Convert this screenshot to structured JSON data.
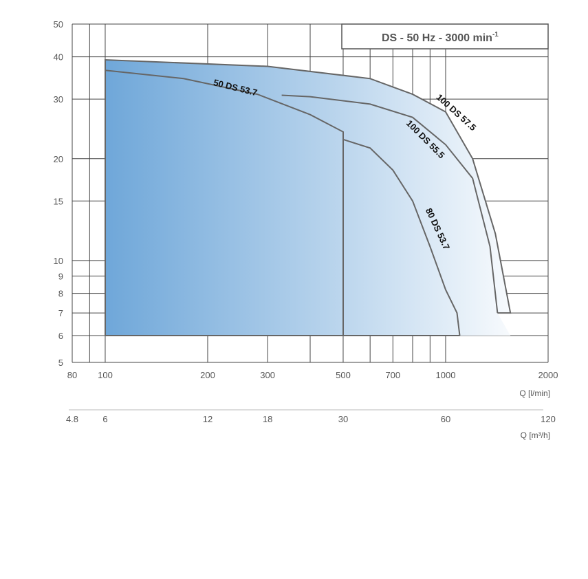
{
  "chart_data": {
    "type": "line",
    "title": "DS - 50 Hz - 3000 min-1",
    "title_main": "DS - 50 Hz - 3000 min",
    "title_sup": "-1",
    "xscale": "log",
    "yscale": "log",
    "xlim": [
      80,
      2000
    ],
    "ylim": [
      5,
      50
    ],
    "grid": true,
    "x_ticks": [
      80,
      90,
      100,
      200,
      300,
      400,
      500,
      600,
      700,
      800,
      900,
      1000,
      2000
    ],
    "x_tick_labels": [
      {
        "value": 80,
        "label": "80"
      },
      {
        "value": 100,
        "label": "100"
      },
      {
        "value": 200,
        "label": "200"
      },
      {
        "value": 300,
        "label": "300"
      },
      {
        "value": 500,
        "label": "500"
      },
      {
        "value": 700,
        "label": "700"
      },
      {
        "value": 1000,
        "label": "1000"
      },
      {
        "value": 2000,
        "label": "2000"
      }
    ],
    "y_ticks": [
      5,
      6,
      7,
      8,
      9,
      10,
      15,
      20,
      30,
      40,
      50
    ],
    "y_tick_labels": [
      {
        "value": 5,
        "label": "5"
      },
      {
        "value": 6,
        "label": "6"
      },
      {
        "value": 7,
        "label": "7"
      },
      {
        "value": 8,
        "label": "8"
      },
      {
        "value": 9,
        "label": "9"
      },
      {
        "value": 10,
        "label": "10"
      },
      {
        "value": 15,
        "label": "15"
      },
      {
        "value": 20,
        "label": "20"
      },
      {
        "value": 30,
        "label": "30"
      },
      {
        "value": 40,
        "label": "40"
      },
      {
        "value": 50,
        "label": "50"
      }
    ],
    "xlabel": "Q [l/min]",
    "x2label": "Q [m³/h]",
    "x2_tick_labels": [
      {
        "value": 80,
        "label": "4.8"
      },
      {
        "value": 100,
        "label": "6"
      },
      {
        "value": 200,
        "label": "12"
      },
      {
        "value": 300,
        "label": "18"
      },
      {
        "value": 500,
        "label": "30"
      },
      {
        "value": 1000,
        "label": "60"
      },
      {
        "value": 2000,
        "label": "120"
      }
    ],
    "fill_colors": [
      "#6fa7d9",
      "#b7d3ec",
      "#f7fafd"
    ],
    "outline_color": "#666666",
    "series": [
      {
        "name": "50 DS 53.7",
        "points": [
          [
            100,
            6
          ],
          [
            100,
            36.5
          ],
          [
            170,
            34.5
          ],
          [
            280,
            31
          ],
          [
            400,
            27
          ],
          [
            500,
            24
          ],
          [
            500,
            6
          ]
        ]
      },
      {
        "name": "100 DS 57.5",
        "points": [
          [
            100,
            6
          ],
          [
            100,
            39.2
          ],
          [
            300,
            37.5
          ],
          [
            600,
            34.5
          ],
          [
            800,
            31
          ],
          [
            1000,
            27.5
          ],
          [
            1200,
            20
          ],
          [
            1400,
            12
          ],
          [
            1550,
            7
          ],
          [
            1420,
            7
          ],
          [
            1350,
            11
          ],
          [
            1200,
            17.5
          ],
          [
            1000,
            22
          ],
          [
            800,
            26.5
          ],
          [
            600,
            29
          ],
          [
            400,
            30.5
          ],
          [
            330,
            30.8
          ]
        ]
      },
      {
        "name": "100 DS 55.5",
        "points": [
          [
            330,
            30.8
          ],
          [
            400,
            30.5
          ],
          [
            600,
            29
          ],
          [
            800,
            26.5
          ],
          [
            1000,
            22
          ],
          [
            1200,
            17.5
          ],
          [
            1350,
            11
          ],
          [
            1420,
            7
          ]
        ]
      },
      {
        "name": "80 DS 53.7",
        "points": [
          [
            500,
            6
          ],
          [
            500,
            22.8
          ],
          [
            600,
            21.5
          ],
          [
            700,
            18.5
          ],
          [
            800,
            15
          ],
          [
            900,
            11
          ],
          [
            1000,
            8.2
          ],
          [
            1080,
            7
          ],
          [
            1100,
            6
          ]
        ]
      }
    ],
    "labels": [
      {
        "text": "50 DS 53.7",
        "x": 240,
        "y": 31.8,
        "rotate": 14
      },
      {
        "text": "100 DS 57.5",
        "x": 1060,
        "y": 27,
        "rotate": 42
      },
      {
        "text": "100 DS 55.5",
        "x": 860,
        "y": 22.5,
        "rotate": 45
      },
      {
        "text": "80 DS 53.7",
        "x": 930,
        "y": 12.3,
        "rotate": 65
      }
    ]
  }
}
